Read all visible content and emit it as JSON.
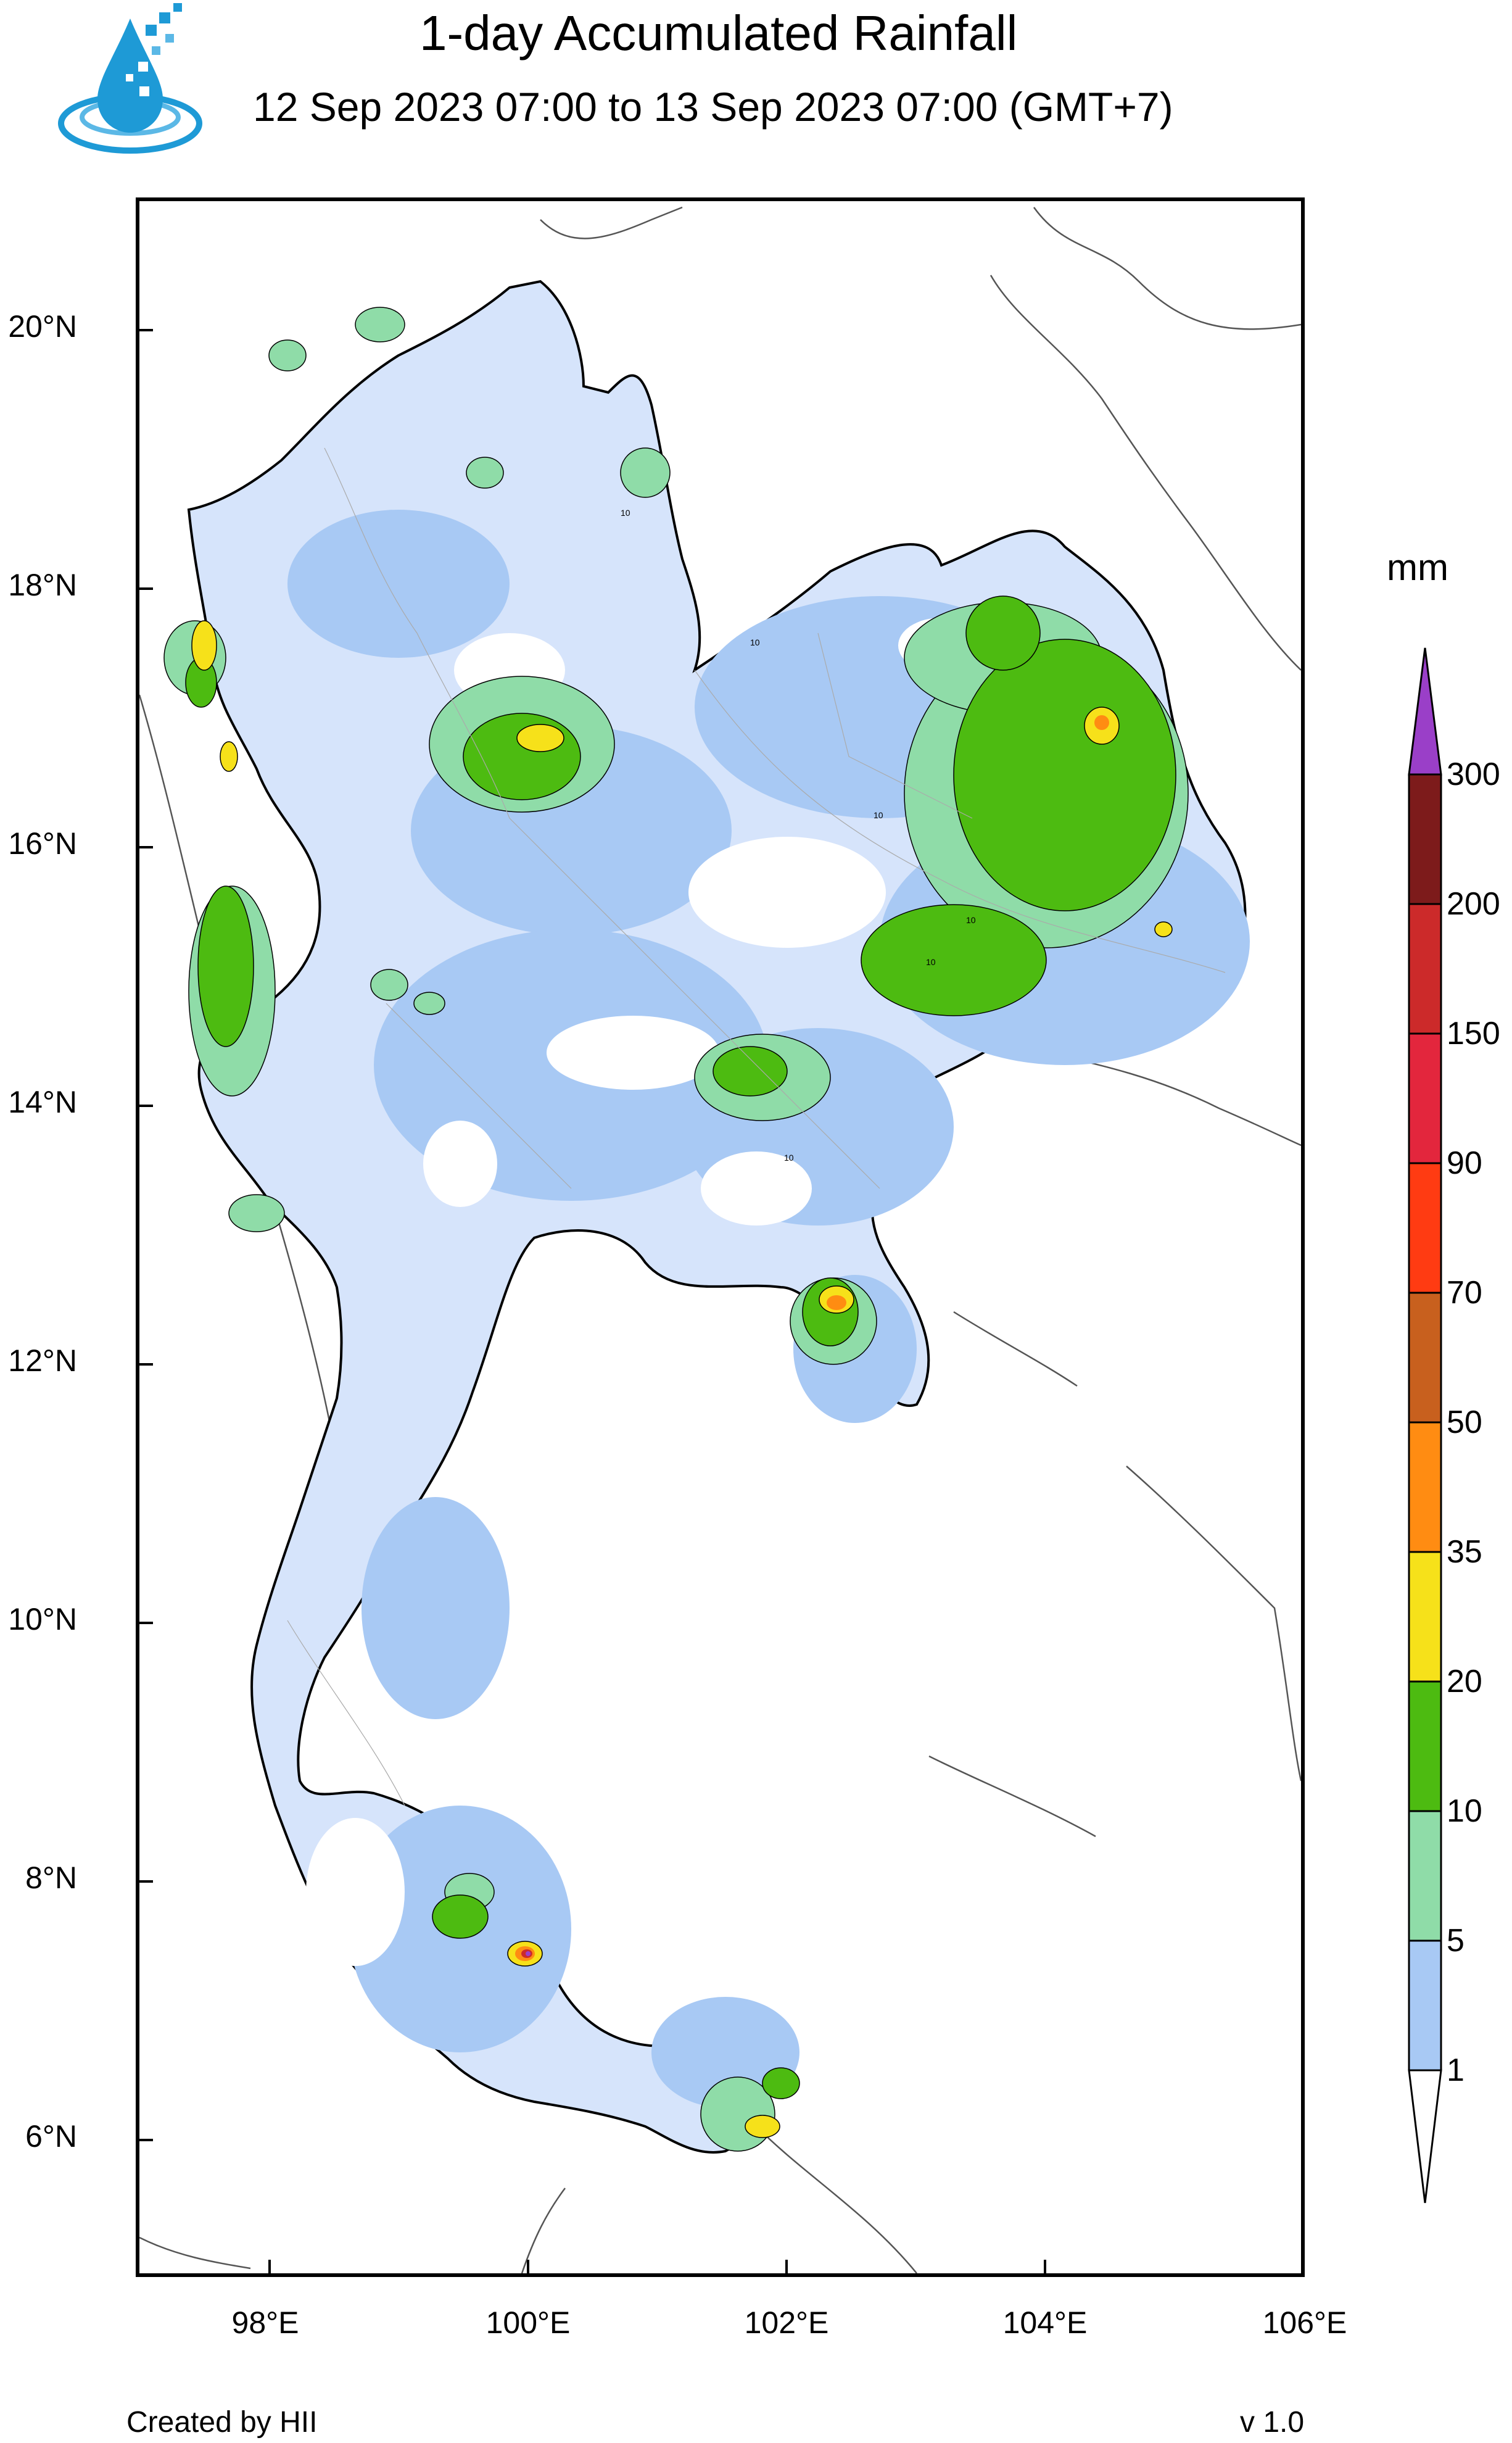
{
  "header": {
    "title": "1-day Accumulated Rainfall",
    "subtitle": "12 Sep 2023 07:00 to 13 Sep 2023 07:00 (GMT+7)"
  },
  "logo": {
    "icon": "water-drop-pixel-logo-icon",
    "colors": [
      "#1e9ad6",
      "#5bb8e6",
      "#ffffff"
    ]
  },
  "map": {
    "latitude_labels": [
      "20°N",
      "18°N",
      "16°N",
      "14°N",
      "12°N",
      "10°N",
      "8°N",
      "6°N"
    ],
    "longitude_labels": [
      "98°E",
      "100°E",
      "102°E",
      "104°E",
      "106°E"
    ],
    "contour_label": "10"
  },
  "colorbar": {
    "unit": "mm",
    "levels": [
      "300",
      "200",
      "150",
      "90",
      "70",
      "50",
      "35",
      "20",
      "10",
      "5",
      "1"
    ],
    "colors": [
      "#9a3fc8",
      "#7d1b1b",
      "#cc2a2a",
      "#e3263d",
      "#ff3b12",
      "#c8601e",
      "#ff8c12",
      "#ffc31a",
      "#f6e11a",
      "#4dbb11",
      "#8fdca8",
      "#a8c9f4",
      "#d6e4fb",
      "#ffffff"
    ]
  },
  "footer": {
    "credit": "Created by HII",
    "version": "v 1.0"
  }
}
